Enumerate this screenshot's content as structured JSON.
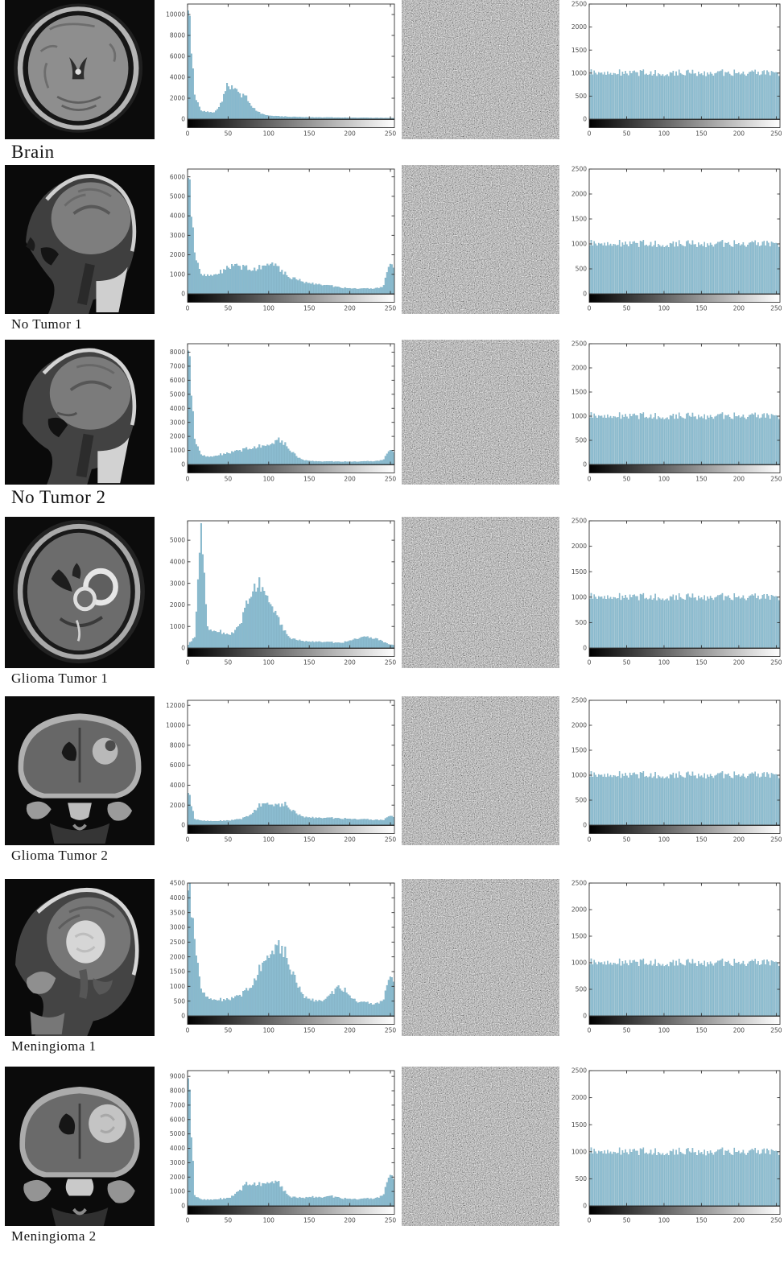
{
  "rows": [
    {
      "label": "Brain"
    },
    {
      "label": "No Tumor 1"
    },
    {
      "label": "No Tumor 2"
    },
    {
      "label": "Glioma Tumor 1"
    },
    {
      "label": "Glioma Tumor 2"
    },
    {
      "label": "Meningioma 1"
    },
    {
      "label": "Meningioma 2"
    }
  ],
  "colors": {
    "bar_fill": "#8cbdd1",
    "bar_edge": "#679db4",
    "axis": "#333333",
    "tick_text": "#4a4a4a",
    "colorbar_start": "#000000",
    "colorbar_end": "#ffffff"
  },
  "chart_data": [
    {
      "row": "Brain",
      "kind": "original",
      "type": "bar",
      "x_range": [
        0,
        255
      ],
      "x_step": 8,
      "ylim": [
        0,
        11000
      ],
      "yticks": [
        0,
        2000,
        4000,
        6000,
        8000,
        10000
      ],
      "xticks": [
        0,
        50,
        100,
        150,
        200,
        250
      ],
      "grid": false,
      "colorbar": "grayscale 0-255",
      "envelope": [
        11000,
        2300,
        800,
        700,
        650,
        1400,
        3300,
        2900,
        2400,
        2000,
        1100,
        600,
        400,
        320,
        270,
        240,
        215,
        200,
        190,
        180,
        170,
        160,
        150,
        145,
        140,
        135,
        130,
        125,
        120,
        115,
        110,
        105
      ]
    },
    {
      "row": "Brain",
      "kind": "encrypted",
      "type": "bar",
      "x_range": [
        0,
        255
      ],
      "ylim": [
        0,
        2500
      ],
      "yticks": [
        0,
        500,
        1000,
        1500,
        2000,
        2500
      ],
      "xticks": [
        0,
        50,
        100,
        150,
        200,
        250
      ],
      "grid": false,
      "colorbar": "grayscale 0-255",
      "uniform_level": 1000
    },
    {
      "row": "No Tumor 1",
      "kind": "original",
      "type": "bar",
      "x_range": [
        0,
        255
      ],
      "x_step": 8,
      "ylim": [
        0,
        6400
      ],
      "yticks": [
        0,
        1000,
        2000,
        3000,
        4000,
        5000,
        6000
      ],
      "xticks": [
        0,
        50,
        100,
        150,
        200,
        250
      ],
      "grid": false,
      "colorbar": "grayscale 0-255",
      "envelope": [
        6300,
        2100,
        1000,
        950,
        1000,
        1100,
        1350,
        1450,
        1400,
        1300,
        1250,
        1350,
        1600,
        1700,
        1300,
        1000,
        800,
        700,
        600,
        550,
        500,
        450,
        400,
        350,
        300,
        280,
        270,
        260,
        260,
        280,
        330,
        1500
      ]
    },
    {
      "row": "No Tumor 1",
      "kind": "encrypted",
      "type": "bar",
      "x_range": [
        0,
        255
      ],
      "ylim": [
        0,
        2500
      ],
      "yticks": [
        0,
        500,
        1000,
        1500,
        2000,
        2500
      ],
      "xticks": [
        0,
        50,
        100,
        150,
        200,
        250
      ],
      "grid": false,
      "colorbar": "grayscale 0-255",
      "uniform_level": 1000
    },
    {
      "row": "No Tumor 2",
      "kind": "original",
      "type": "bar",
      "x_range": [
        0,
        255
      ],
      "x_step": 8,
      "ylim": [
        0,
        8600
      ],
      "yticks": [
        0,
        1000,
        2000,
        3000,
        4000,
        5000,
        6000,
        7000,
        8000
      ],
      "xticks": [
        0,
        50,
        100,
        150,
        200,
        250
      ],
      "grid": false,
      "colorbar": "grayscale 0-255",
      "envelope": [
        8600,
        1800,
        700,
        550,
        600,
        700,
        800,
        900,
        1000,
        1100,
        1200,
        1300,
        1450,
        1600,
        1800,
        1400,
        900,
        450,
        300,
        250,
        220,
        210,
        205,
        200,
        200,
        200,
        205,
        210,
        220,
        230,
        300,
        1000
      ]
    },
    {
      "row": "No Tumor 2",
      "kind": "encrypted",
      "type": "bar",
      "x_range": [
        0,
        255
      ],
      "ylim": [
        0,
        2500
      ],
      "yticks": [
        0,
        500,
        1000,
        1500,
        2000,
        2500
      ],
      "xticks": [
        0,
        50,
        100,
        150,
        200,
        250
      ],
      "grid": false,
      "colorbar": "grayscale 0-255",
      "uniform_level": 1000
    },
    {
      "row": "Glioma Tumor 1",
      "kind": "original",
      "type": "bar",
      "x_range": [
        0,
        255
      ],
      "x_step": 8,
      "ylim": [
        0,
        5900
      ],
      "yticks": [
        0,
        1000,
        2000,
        3000,
        4000,
        5000
      ],
      "xticks": [
        0,
        50,
        100,
        150,
        200,
        250
      ],
      "grid": false,
      "colorbar": "grayscale 0-255",
      "envelope": [
        150,
        500,
        5800,
        900,
        800,
        750,
        620,
        700,
        1100,
        2000,
        2800,
        3000,
        2700,
        2000,
        1300,
        700,
        420,
        350,
        320,
        300,
        300,
        280,
        260,
        240,
        260,
        350,
        450,
        500,
        480,
        420,
        300,
        150
      ]
    },
    {
      "row": "Glioma Tumor 1",
      "kind": "encrypted",
      "type": "bar",
      "x_range": [
        0,
        255
      ],
      "ylim": [
        0,
        2500
      ],
      "yticks": [
        0,
        500,
        1000,
        1500,
        2000,
        2500
      ],
      "xticks": [
        0,
        50,
        100,
        150,
        200,
        250
      ],
      "grid": false,
      "colorbar": "grayscale 0-255",
      "uniform_level": 1000
    },
    {
      "row": "Glioma Tumor 2",
      "kind": "original",
      "type": "bar",
      "x_range": [
        0,
        255
      ],
      "x_step": 8,
      "ylim": [
        0,
        12500
      ],
      "yticks": [
        0,
        2000,
        4000,
        6000,
        8000,
        10000,
        12000
      ],
      "xticks": [
        0,
        50,
        100,
        150,
        200,
        250
      ],
      "grid": false,
      "colorbar": "grayscale 0-255",
      "envelope": [
        3400,
        600,
        450,
        420,
        400,
        420,
        450,
        500,
        600,
        800,
        1300,
        2000,
        2400,
        2150,
        2000,
        2100,
        1500,
        1000,
        820,
        780,
        750,
        720,
        700,
        680,
        650,
        620,
        600,
        570,
        540,
        510,
        480,
        900
      ]
    },
    {
      "row": "Glioma Tumor 2",
      "kind": "encrypted",
      "type": "bar",
      "x_range": [
        0,
        255
      ],
      "ylim": [
        0,
        2500
      ],
      "yticks": [
        0,
        500,
        1000,
        1500,
        2000,
        2500
      ],
      "xticks": [
        0,
        50,
        100,
        150,
        200,
        250
      ],
      "grid": false,
      "colorbar": "grayscale 0-255",
      "uniform_level": 1000
    },
    {
      "row": "Meningioma 1",
      "kind": "original",
      "type": "bar",
      "x_range": [
        0,
        255
      ],
      "x_step": 8,
      "ylim": [
        0,
        4500
      ],
      "yticks": [
        0,
        500,
        1000,
        1500,
        2000,
        2500,
        3000,
        3500,
        4000,
        4500
      ],
      "xticks": [
        0,
        50,
        100,
        150,
        200,
        250
      ],
      "grid": false,
      "colorbar": "grayscale 0-255",
      "envelope": [
        4500,
        2600,
        900,
        620,
        560,
        540,
        560,
        600,
        700,
        850,
        1100,
        1600,
        2100,
        2350,
        2400,
        2100,
        1500,
        950,
        650,
        560,
        520,
        550,
        700,
        1000,
        900,
        650,
        500,
        450,
        420,
        400,
        500,
        1300
      ]
    },
    {
      "row": "Meningioma 1",
      "kind": "encrypted",
      "type": "bar",
      "x_range": [
        0,
        255
      ],
      "ylim": [
        0,
        2500
      ],
      "yticks": [
        0,
        500,
        1000,
        1500,
        2000,
        2500
      ],
      "xticks": [
        0,
        50,
        100,
        150,
        200,
        250
      ],
      "grid": false,
      "colorbar": "grayscale 0-255",
      "uniform_level": 1000
    },
    {
      "row": "Meningioma 2",
      "kind": "original",
      "type": "bar",
      "x_range": [
        0,
        255
      ],
      "x_step": 8,
      "ylim": [
        0,
        9400
      ],
      "yticks": [
        0,
        1000,
        2000,
        3000,
        4000,
        5000,
        6000,
        7000,
        8000,
        9000
      ],
      "xticks": [
        0,
        50,
        100,
        150,
        200,
        250
      ],
      "grid": false,
      "colorbar": "grayscale 0-255",
      "envelope": [
        9400,
        700,
        450,
        430,
        450,
        480,
        520,
        700,
        1100,
        1500,
        1550,
        1500,
        1700,
        1800,
        1600,
        900,
        600,
        550,
        580,
        650,
        600,
        620,
        650,
        600,
        500,
        480,
        470,
        480,
        500,
        520,
        700,
        2100
      ]
    },
    {
      "row": "Meningioma 2",
      "kind": "encrypted",
      "type": "bar",
      "x_range": [
        0,
        255
      ],
      "ylim": [
        0,
        2500
      ],
      "yticks": [
        0,
        500,
        1000,
        1500,
        2000,
        2500
      ],
      "xticks": [
        0,
        50,
        100,
        150,
        200,
        250
      ],
      "grid": false,
      "colorbar": "grayscale 0-255",
      "uniform_level": 1000
    }
  ]
}
